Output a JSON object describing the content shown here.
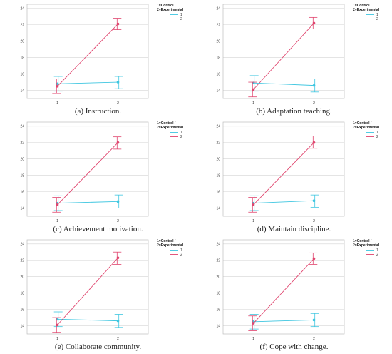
{
  "colors": {
    "control": "#3ec6e0",
    "experimental": "#e0456e",
    "grid": "#dcdcdc",
    "frame": "#bdbdbd"
  },
  "chart_data": [
    {
      "type": "line",
      "caption": "(a) Instruction.",
      "categories": [
        "1",
        "2"
      ],
      "yticks": [
        14,
        16,
        18,
        20,
        22,
        24
      ],
      "ylim": [
        13,
        24.5
      ],
      "legend_title": [
        "1=Control /",
        "2=Experimental"
      ],
      "legend_placement": "top-right",
      "grid": true,
      "series": [
        {
          "name": "1",
          "values": [
            14.8,
            15.0
          ],
          "err_low": [
            13.9,
            14.2
          ],
          "err_high": [
            15.7,
            15.7
          ]
        },
        {
          "name": "2",
          "values": [
            14.5,
            22.1
          ],
          "err_low": [
            13.6,
            21.4
          ],
          "err_high": [
            15.4,
            22.8
          ]
        }
      ]
    },
    {
      "type": "line",
      "caption": "(b) Adaptation teaching.",
      "categories": [
        "1",
        "2"
      ],
      "yticks": [
        14,
        16,
        18,
        20,
        22,
        24
      ],
      "ylim": [
        13,
        24.5
      ],
      "legend_title": [
        "1=Control /",
        "2=Experimental"
      ],
      "legend_placement": "top-right",
      "grid": true,
      "series": [
        {
          "name": "1",
          "values": [
            14.9,
            14.6
          ],
          "err_low": [
            13.9,
            13.8
          ],
          "err_high": [
            15.8,
            15.4
          ]
        },
        {
          "name": "2",
          "values": [
            14.1,
            22.2
          ],
          "err_low": [
            13.2,
            21.5
          ],
          "err_high": [
            15.0,
            22.9
          ]
        }
      ]
    },
    {
      "type": "line",
      "caption": "(c) Achievement motivation.",
      "categories": [
        "1",
        "2"
      ],
      "yticks": [
        14,
        16,
        18,
        20,
        22,
        24
      ],
      "ylim": [
        13,
        24.5
      ],
      "legend_title": [
        "1=Control /",
        "2=Experimental"
      ],
      "legend_placement": "top-right",
      "grid": true,
      "series": [
        {
          "name": "1",
          "values": [
            14.6,
            14.8
          ],
          "err_low": [
            13.7,
            14.0
          ],
          "err_high": [
            15.5,
            15.6
          ]
        },
        {
          "name": "2",
          "values": [
            14.4,
            22.0
          ],
          "err_low": [
            13.5,
            21.2
          ],
          "err_high": [
            15.3,
            22.7
          ]
        }
      ]
    },
    {
      "type": "line",
      "caption": "(d) Maintain discipline.",
      "categories": [
        "1",
        "2"
      ],
      "yticks": [
        14,
        16,
        18,
        20,
        22,
        24
      ],
      "ylim": [
        13,
        24.5
      ],
      "legend_title": [
        "1=Control /",
        "2=Experimental"
      ],
      "legend_placement": "top-right",
      "grid": true,
      "series": [
        {
          "name": "1",
          "values": [
            14.6,
            14.9
          ],
          "err_low": [
            13.7,
            14.1
          ],
          "err_high": [
            15.5,
            15.6
          ]
        },
        {
          "name": "2",
          "values": [
            14.4,
            22.0
          ],
          "err_low": [
            13.5,
            21.3
          ],
          "err_high": [
            15.3,
            22.8
          ]
        }
      ]
    },
    {
      "type": "line",
      "caption": "(e) Collaborate community.",
      "categories": [
        "1",
        "2"
      ],
      "yticks": [
        14,
        16,
        18,
        20,
        22,
        24
      ],
      "ylim": [
        13,
        24.5
      ],
      "legend_title": [
        "1=Control /",
        "2=Experimental"
      ],
      "legend_placement": "top-right",
      "grid": true,
      "series": [
        {
          "name": "1",
          "values": [
            14.8,
            14.6
          ],
          "err_low": [
            13.9,
            13.8
          ],
          "err_high": [
            15.7,
            15.4
          ]
        },
        {
          "name": "2",
          "values": [
            14.1,
            22.3
          ],
          "err_low": [
            13.2,
            21.5
          ],
          "err_high": [
            15.0,
            23.0
          ]
        }
      ]
    },
    {
      "type": "line",
      "caption": "(f) Cope with change.",
      "categories": [
        "1",
        "2"
      ],
      "yticks": [
        14,
        16,
        18,
        20,
        22,
        24
      ],
      "ylim": [
        13,
        24.5
      ],
      "legend_title": [
        "1=Control /",
        "2=Experimental"
      ],
      "legend_placement": "top-right",
      "grid": true,
      "series": [
        {
          "name": "1",
          "values": [
            14.5,
            14.7
          ],
          "err_low": [
            13.6,
            13.9
          ],
          "err_high": [
            15.4,
            15.5
          ]
        },
        {
          "name": "2",
          "values": [
            14.3,
            22.2
          ],
          "err_low": [
            13.4,
            21.5
          ],
          "err_high": [
            15.2,
            22.9
          ]
        }
      ]
    }
  ]
}
